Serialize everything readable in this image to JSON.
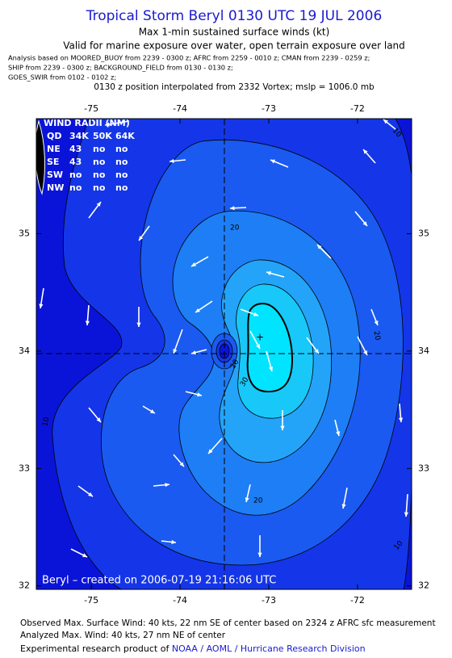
{
  "header": {
    "title": "Tropical Storm Beryl 0130 UTC 19 JUL 2006",
    "subtitle": "Max 1-min sustained surface winds (kt)",
    "valid": "Valid for marine exposure over water, open terrain exposure over land",
    "analysis": [
      "Analysis based on  MOORED_BUOY from 2239 - 0300 z;  AFRC from 2259 - 0010 z;  CMAN from 2239 - 0259 z;",
      "SHIP from 2239 - 0300 z;  BACKGROUND_FIELD from 0130 - 0130 z;",
      "GOES_SWIR from 0102 - 0102 z;"
    ],
    "position": "0130 z position interpolated from 2332 Vortex; mslp = 1006.0 mb"
  },
  "map": {
    "xlim": [
      -75.62,
      -71.39
    ],
    "ylim": [
      31.97,
      35.98
    ],
    "xticks": [
      -75,
      -74,
      -73,
      -72
    ],
    "yticks": [
      32,
      33,
      34,
      35
    ],
    "contour_labels": [
      20,
      20,
      20,
      30,
      10,
      20,
      10,
      10
    ],
    "credit": "Beryl – created on 2006-07-19 21:16:06 UTC"
  },
  "wind_radii": {
    "title": "WIND RADII (NM)",
    "header": [
      "QD",
      "34K",
      "50K",
      "64K"
    ],
    "rows": [
      [
        "NE",
        43,
        "no",
        "no"
      ],
      [
        "SE",
        43,
        "no",
        "no"
      ],
      [
        "SW",
        "no",
        "no",
        "no"
      ],
      [
        "NW",
        "no",
        "no",
        "no"
      ]
    ]
  },
  "footer": {
    "observed": "Observed Max. Surface Wind: 40 kts, 22 nm SE of center based on 2324 z AFRC sfc measurement",
    "analyzed": "Analyzed Max. Wind: 40 kts, 27 nm NE of center",
    "product": "Experimental research product of ",
    "link": "NOAA / AOML / Hurricane Research Division"
  }
}
